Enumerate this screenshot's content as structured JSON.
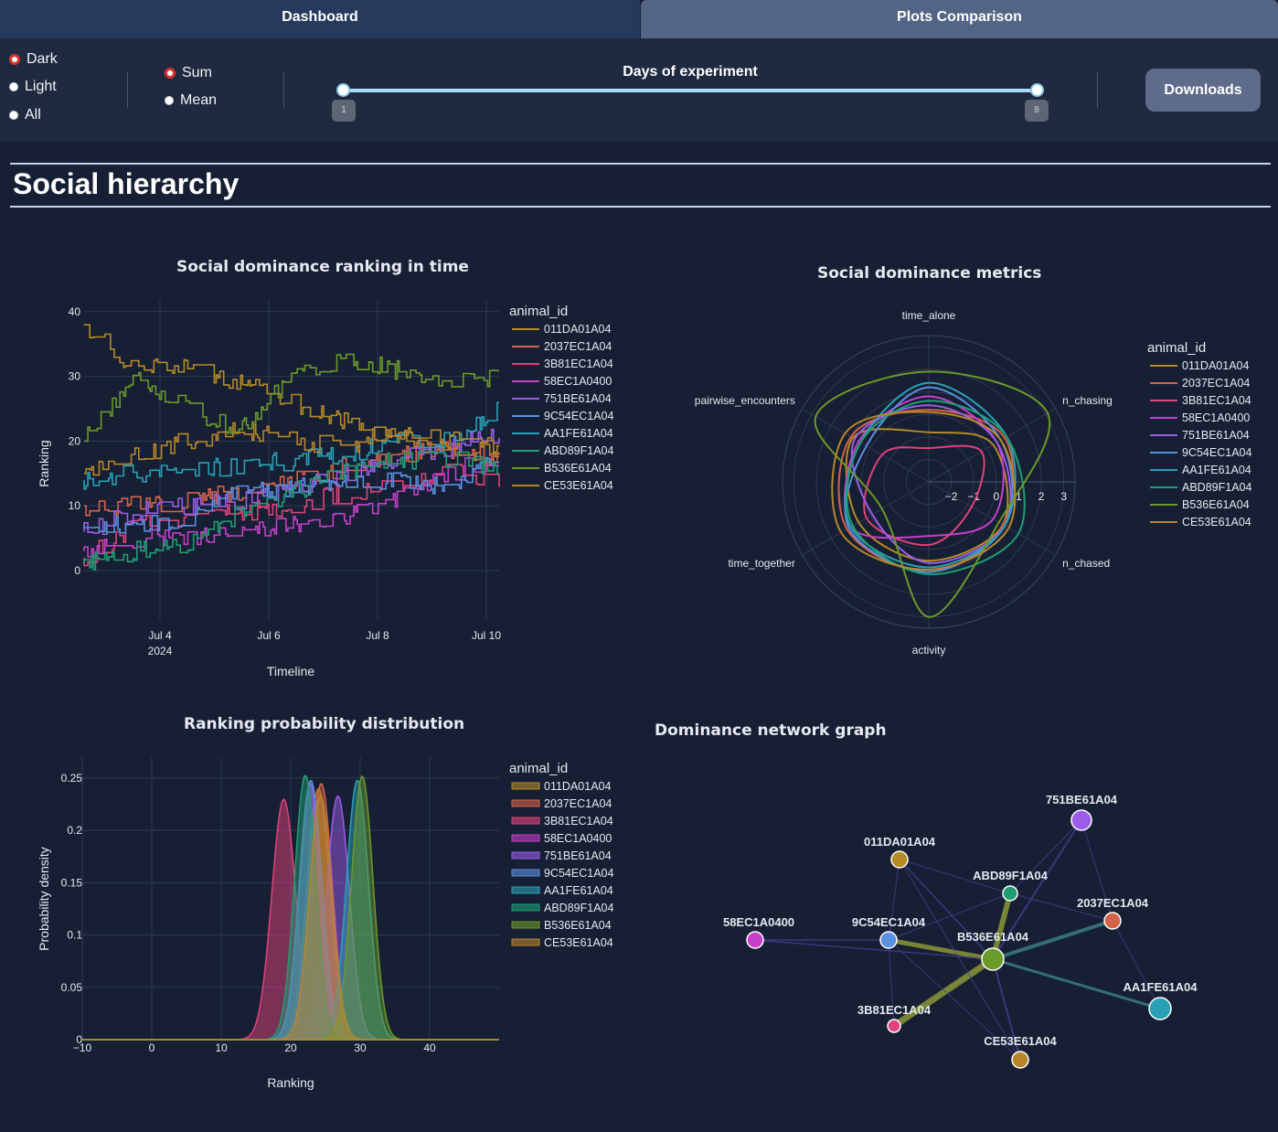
{
  "tabs": [
    {
      "label": "Dashboard"
    },
    {
      "label": "Plots Comparison"
    }
  ],
  "controls": {
    "lighting": [
      {
        "label": "Dark",
        "selected": true
      },
      {
        "label": "Light",
        "selected": false
      },
      {
        "label": "All",
        "selected": false
      }
    ],
    "aggregation": [
      {
        "label": "Sum",
        "selected": true
      },
      {
        "label": "Mean",
        "selected": false
      }
    ],
    "slider": {
      "title": "Days of experiment",
      "min": 1,
      "max": 8,
      "low": 1,
      "high": 8,
      "low_label": "1",
      "high_label": "8"
    },
    "downloads_label": "Downloads"
  },
  "section_title": "Social hierarchy",
  "animals": [
    "011DA01A04",
    "2037EC1A04",
    "3B81EC1A04",
    "58EC1A0400",
    "751BE61A04",
    "9C54EC1A04",
    "AA1FE61A04",
    "ABD89F1A04",
    "B536E61A04",
    "CE53E61A04"
  ],
  "colors": {
    "011DA01A04": "#b58b26",
    "2037EC1A04": "#d5634a",
    "3B81EC1A04": "#e0427a",
    "58EC1A0400": "#c540c8",
    "751BE61A04": "#9b5ce8",
    "9C54EC1A04": "#5b8fe0",
    "AA1FE61A04": "#2aa0b6",
    "ABD89F1A04": "#1f9e73",
    "B536E61A04": "#6a9a2a",
    "CE53E61A04": "#b8862a"
  },
  "legend_title": "animal_id",
  "chart_data": [
    {
      "title": "Social dominance ranking in time",
      "type": "line",
      "xlabel": "Timeline",
      "ylabel": "Ranking",
      "x_ticks": [
        "Jul 4",
        "Jul 6",
        "Jul 8",
        "Jul 10"
      ],
      "x_tick_sub": "2024",
      "y_ticks": [
        "0",
        "10",
        "20",
        "30",
        "40"
      ],
      "xlim": [
        "2024-07-02 12:00",
        "2024-07-10 08:00"
      ],
      "ylim": [
        -7,
        42
      ],
      "x": [
        "Jul 2",
        "Jul 3",
        "Jul 4",
        "Jul 5",
        "Jul 6",
        "Jul 7",
        "Jul 8",
        "Jul 9",
        "Jul 10"
      ],
      "series": [
        {
          "name": "011DA01A04",
          "values": [
            38,
            31,
            32,
            29,
            26,
            23,
            20,
            19,
            18
          ]
        },
        {
          "name": "2037EC1A04",
          "values": [
            10,
            10,
            11,
            12,
            14,
            16,
            18,
            19,
            17
          ]
        },
        {
          "name": "3B81EC1A04",
          "values": [
            2,
            7,
            8,
            9,
            10,
            12,
            13,
            15,
            14
          ]
        },
        {
          "name": "58EC1A0400",
          "values": [
            3,
            5,
            5,
            6,
            7,
            8,
            11,
            15,
            18
          ]
        },
        {
          "name": "751BE61A04",
          "values": [
            6,
            9,
            10,
            11,
            13,
            15,
            17,
            19,
            21
          ]
        },
        {
          "name": "9C54EC1A04",
          "values": [
            7,
            7,
            8,
            12,
            13,
            14,
            14,
            13,
            17
          ]
        },
        {
          "name": "AA1FE61A04",
          "values": [
            14,
            15,
            16,
            16,
            17,
            18,
            20,
            20,
            25
          ]
        },
        {
          "name": "ABD89F1A04",
          "values": [
            1,
            3,
            4,
            9,
            12,
            15,
            17,
            17,
            16
          ]
        },
        {
          "name": "B536E61A04",
          "values": [
            20,
            30,
            25,
            22,
            30,
            33,
            31,
            29,
            30
          ]
        },
        {
          "name": "CE53E61A04",
          "values": [
            15,
            18,
            20,
            22,
            20,
            19,
            22,
            20,
            19
          ]
        }
      ]
    },
    {
      "title": "Social dominance metrics",
      "type": "radar",
      "axes": [
        "time_alone",
        "n_chasing",
        "n_chased",
        "activity",
        "time_together",
        "pairwise_encounters"
      ],
      "radial_ticks": [
        "−2",
        "−1",
        "0",
        "1",
        "2",
        "3"
      ],
      "rlim": [
        -3,
        3.5
      ],
      "series": [
        {
          "name": "011DA01A04",
          "values": [
            -0.8,
            0.3,
            0.8,
            0.5,
            0.6,
            0.9
          ]
        },
        {
          "name": "2037EC1A04",
          "values": [
            0.2,
            0.9,
            0.8,
            1.0,
            1.2,
            1.0
          ]
        },
        {
          "name": "3B81EC1A04",
          "values": [
            -1.5,
            -0.3,
            -0.8,
            -0.2,
            0.2,
            -0.6
          ]
        },
        {
          "name": "58EC1A0400",
          "values": [
            0.8,
            0.5,
            0.3,
            -0.6,
            1.0,
            0.6
          ]
        },
        {
          "name": "751BE61A04",
          "values": [
            0.4,
            0.5,
            0.9,
            0.6,
            -0.1,
            0.8
          ]
        },
        {
          "name": "9C54EC1A04",
          "values": [
            1.2,
            0.7,
            0.9,
            1.0,
            1.1,
            0.2
          ]
        },
        {
          "name": "AA1FE61A04",
          "values": [
            1.4,
            1.0,
            0.9,
            0.8,
            1.0,
            0.5
          ]
        },
        {
          "name": "ABD89F1A04",
          "values": [
            0.6,
            1.0,
            1.6,
            1.1,
            0.9,
            0.5
          ]
        },
        {
          "name": "B536E61A04",
          "values": [
            1.9,
            3.1,
            0.6,
            3.0,
            -0.6,
            2.8
          ]
        },
        {
          "name": "CE53E61A04",
          "values": [
            0.1,
            0.7,
            1.1,
            0.9,
            1.5,
            1.3
          ]
        }
      ]
    },
    {
      "title": "Ranking probability distribution",
      "type": "area",
      "xlabel": "Ranking",
      "ylabel": "Probability density",
      "x_ticks": [
        "−10",
        "0",
        "10",
        "20",
        "30",
        "40"
      ],
      "y_ticks": [
        "0",
        "0.05",
        "0.1",
        "0.15",
        "0.2",
        "0.25"
      ],
      "xlim": [
        -10,
        50
      ],
      "ylim": [
        0,
        0.27
      ],
      "series": [
        {
          "name": "011DA01A04",
          "mean": 24.0,
          "sd": 1.65,
          "peak": 0.24
        },
        {
          "name": "2037EC1A04",
          "mean": 24.4,
          "sd": 1.6,
          "peak": 0.245
        },
        {
          "name": "3B81EC1A04",
          "mean": 19.0,
          "sd": 1.72,
          "peak": 0.23
        },
        {
          "name": "58EC1A0400",
          "mean": 22.8,
          "sd": 1.6,
          "peak": 0.245
        },
        {
          "name": "751BE61A04",
          "mean": 26.8,
          "sd": 1.65,
          "peak": 0.233
        },
        {
          "name": "9C54EC1A04",
          "mean": 22.9,
          "sd": 1.6,
          "peak": 0.248
        },
        {
          "name": "AA1FE61A04",
          "mean": 29.6,
          "sd": 1.6,
          "peak": 0.248
        },
        {
          "name": "ABD89F1A04",
          "mean": 22.1,
          "sd": 1.55,
          "peak": 0.253
        },
        {
          "name": "B536E61A04",
          "mean": 30.3,
          "sd": 1.55,
          "peak": 0.252
        },
        {
          "name": "CE53E61A04",
          "mean": 24.3,
          "sd": 1.6,
          "peak": 0.233
        }
      ]
    },
    {
      "title": "Dominance network graph",
      "type": "network",
      "nodes": [
        {
          "id": "751BE61A04",
          "label": "751BE61A04"
        },
        {
          "id": "011DA01A04",
          "label": "011DA01A04"
        },
        {
          "id": "ABD89F1A04",
          "label": "ABD89F1A04"
        },
        {
          "id": "2037EC1A04",
          "label": "2037EC1A04"
        },
        {
          "id": "58EC1A0400",
          "label": "58EC1A0400"
        },
        {
          "id": "9C54EC1A04",
          "label": "9C54EC1A04"
        },
        {
          "id": "B536E61A04",
          "label": "B536E61A04"
        },
        {
          "id": "AA1FE61A04",
          "label": "AA1FE61A04"
        },
        {
          "id": "3B81EC1A04",
          "label": "3B81EC1A04"
        },
        {
          "id": "CE53E61A04",
          "label": "CE53E61A04"
        }
      ],
      "edges": [
        {
          "source": "B536E61A04",
          "target": "ABD89F1A04",
          "weight": 6
        },
        {
          "source": "B536E61A04",
          "target": "3B81EC1A04",
          "weight": 7
        },
        {
          "source": "B536E61A04",
          "target": "9C54EC1A04",
          "weight": 5
        },
        {
          "source": "B536E61A04",
          "target": "2037EC1A04",
          "weight": 4
        },
        {
          "source": "B536E61A04",
          "target": "AA1FE61A04",
          "weight": 3
        },
        {
          "source": "B536E61A04",
          "target": "751BE61A04",
          "weight": 2
        },
        {
          "source": "B536E61A04",
          "target": "CE53E61A04",
          "weight": 2
        },
        {
          "source": "B536E61A04",
          "target": "011DA01A04",
          "weight": 1.5
        },
        {
          "source": "B536E61A04",
          "target": "58EC1A0400",
          "weight": 1.5
        },
        {
          "source": "9C54EC1A04",
          "target": "58EC1A0400",
          "weight": 1.5
        },
        {
          "source": "011DA01A04",
          "target": "ABD89F1A04",
          "weight": 1
        },
        {
          "source": "011DA01A04",
          "target": "9C54EC1A04",
          "weight": 1
        },
        {
          "source": "ABD89F1A04",
          "target": "2037EC1A04",
          "weight": 1
        },
        {
          "source": "751BE61A04",
          "target": "ABD89F1A04",
          "weight": 1
        },
        {
          "source": "9C54EC1A04",
          "target": "ABD89F1A04",
          "weight": 1
        },
        {
          "source": "3B81EC1A04",
          "target": "9C54EC1A04",
          "weight": 1
        },
        {
          "source": "CE53E61A04",
          "target": "9C54EC1A04",
          "weight": 1
        },
        {
          "source": "2037EC1A04",
          "target": "AA1FE61A04",
          "weight": 1
        },
        {
          "source": "011DA01A04",
          "target": "CE53E61A04",
          "weight": 1
        },
        {
          "source": "751BE61A04",
          "target": "2037EC1A04",
          "weight": 1
        }
      ]
    }
  ]
}
